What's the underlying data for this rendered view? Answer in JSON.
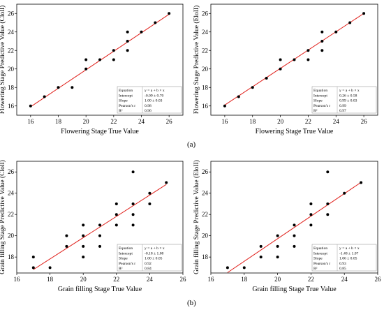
{
  "captions": {
    "a": "(a)",
    "b": "(b)"
  },
  "colors": {
    "fit_line": "#e0201b",
    "point": "#000000",
    "axis": "#000000"
  },
  "stat_headers": {
    "equation": "Equation",
    "intercept": "Intercept",
    "slope": "Slope",
    "pearson": "Pearson's r",
    "r2": "R²"
  },
  "chart_data": [
    {
      "type": "scatter",
      "xlabel": "Flowering Stage True Value",
      "ylabel": "Flowering Stage Predictive Value (ClolI)",
      "xlim": [
        15,
        27
      ],
      "ylim": [
        15,
        27
      ],
      "xticks": [
        16,
        18,
        20,
        22,
        24,
        26
      ],
      "yticks": [
        16,
        18,
        20,
        22,
        24,
        26
      ],
      "points": [
        [
          16,
          16
        ],
        [
          17,
          17
        ],
        [
          18,
          18
        ],
        [
          19,
          18
        ],
        [
          20,
          20
        ],
        [
          20,
          21
        ],
        [
          21,
          21
        ],
        [
          22,
          21
        ],
        [
          22,
          22
        ],
        [
          23,
          22
        ],
        [
          23,
          23
        ],
        [
          23,
          24
        ],
        [
          24,
          24
        ],
        [
          25,
          25
        ],
        [
          26,
          26
        ]
      ],
      "fit": {
        "intercept": -0.09,
        "slope": 1.0
      },
      "stats": {
        "equation": "y = a + b × x",
        "intercept": "-0.09 ± 0.70",
        "slope": "1.00 ± 0.03",
        "pearson": "0.98",
        "r2": "0.96"
      }
    },
    {
      "type": "scatter",
      "xlabel": "Flowering Stage True Value",
      "ylabel": "Flowering Stage Predictive Value (EloII)",
      "xlim": [
        15,
        27
      ],
      "ylim": [
        15,
        27
      ],
      "xticks": [
        16,
        18,
        20,
        22,
        24,
        26
      ],
      "yticks": [
        16,
        18,
        20,
        22,
        24,
        26
      ],
      "points": [
        [
          16,
          16
        ],
        [
          17,
          17
        ],
        [
          18,
          18
        ],
        [
          19,
          19
        ],
        [
          20,
          20
        ],
        [
          20,
          21
        ],
        [
          21,
          21
        ],
        [
          22,
          21
        ],
        [
          22,
          22
        ],
        [
          23,
          22
        ],
        [
          23,
          23
        ],
        [
          23,
          24
        ],
        [
          24,
          24
        ],
        [
          25,
          25
        ],
        [
          26,
          26
        ]
      ],
      "fit": {
        "intercept": 0.26,
        "slope": 0.99
      },
      "stats": {
        "equation": "y = a + b × x",
        "intercept": "0.26 ± 0.58",
        "slope": "0.99 ± 0.03",
        "pearson": "0.99",
        "r2": "0.97"
      }
    },
    {
      "type": "scatter",
      "xlabel": "Grain filling Stage True Value",
      "ylabel": "Grain filling Stage Predictive Value (ClolI)",
      "xlim": [
        16,
        26
      ],
      "ylim": [
        16.5,
        27
      ],
      "xticks": [
        16,
        18,
        20,
        22,
        24,
        26
      ],
      "yticks": [
        18,
        20,
        22,
        24,
        26
      ],
      "points": [
        [
          17,
          17
        ],
        [
          17,
          18
        ],
        [
          18,
          17
        ],
        [
          19,
          19
        ],
        [
          19,
          20
        ],
        [
          20,
          18
        ],
        [
          20,
          19
        ],
        [
          20,
          20
        ],
        [
          20,
          21
        ],
        [
          21,
          19
        ],
        [
          21,
          20
        ],
        [
          21,
          21
        ],
        [
          22,
          21
        ],
        [
          22,
          22
        ],
        [
          22,
          23
        ],
        [
          23,
          21
        ],
        [
          23,
          22
        ],
        [
          23,
          23
        ],
        [
          23,
          26
        ],
        [
          24,
          23
        ],
        [
          24,
          24
        ],
        [
          25,
          25
        ]
      ],
      "fit": {
        "intercept": -0.18,
        "slope": 1.0
      },
      "stats": {
        "equation": "y = a + b × x",
        "intercept": "-0.18 ± 1.08",
        "slope": "1.00 ± 0.05",
        "pearson": "0.92",
        "r2": "0.84"
      }
    },
    {
      "type": "scatter",
      "xlabel": "Grain filling Stage True Value",
      "ylabel": "Grain filling Stage Predictive Value (EloII)",
      "xlim": [
        16,
        26
      ],
      "ylim": [
        16.5,
        27
      ],
      "xticks": [
        16,
        18,
        20,
        22,
        24,
        26
      ],
      "yticks": [
        18,
        20,
        22,
        24,
        26
      ],
      "points": [
        [
          17,
          17
        ],
        [
          18,
          17
        ],
        [
          19,
          18
        ],
        [
          19,
          19
        ],
        [
          20,
          18
        ],
        [
          20,
          19
        ],
        [
          20,
          20
        ],
        [
          21,
          19
        ],
        [
          21,
          20
        ],
        [
          21,
          21
        ],
        [
          22,
          21
        ],
        [
          22,
          22
        ],
        [
          22,
          23
        ],
        [
          23,
          22
        ],
        [
          23,
          23
        ],
        [
          23,
          26
        ],
        [
          24,
          24
        ],
        [
          25,
          25
        ]
      ],
      "fit": {
        "intercept": -1.48,
        "slope": 1.06
      },
      "stats": {
        "equation": "y = a + b × x",
        "intercept": "-1.48 ± 1.07",
        "slope": "1.06 ± 0.05",
        "pearson": "0.93",
        "r2": "0.85"
      }
    }
  ]
}
